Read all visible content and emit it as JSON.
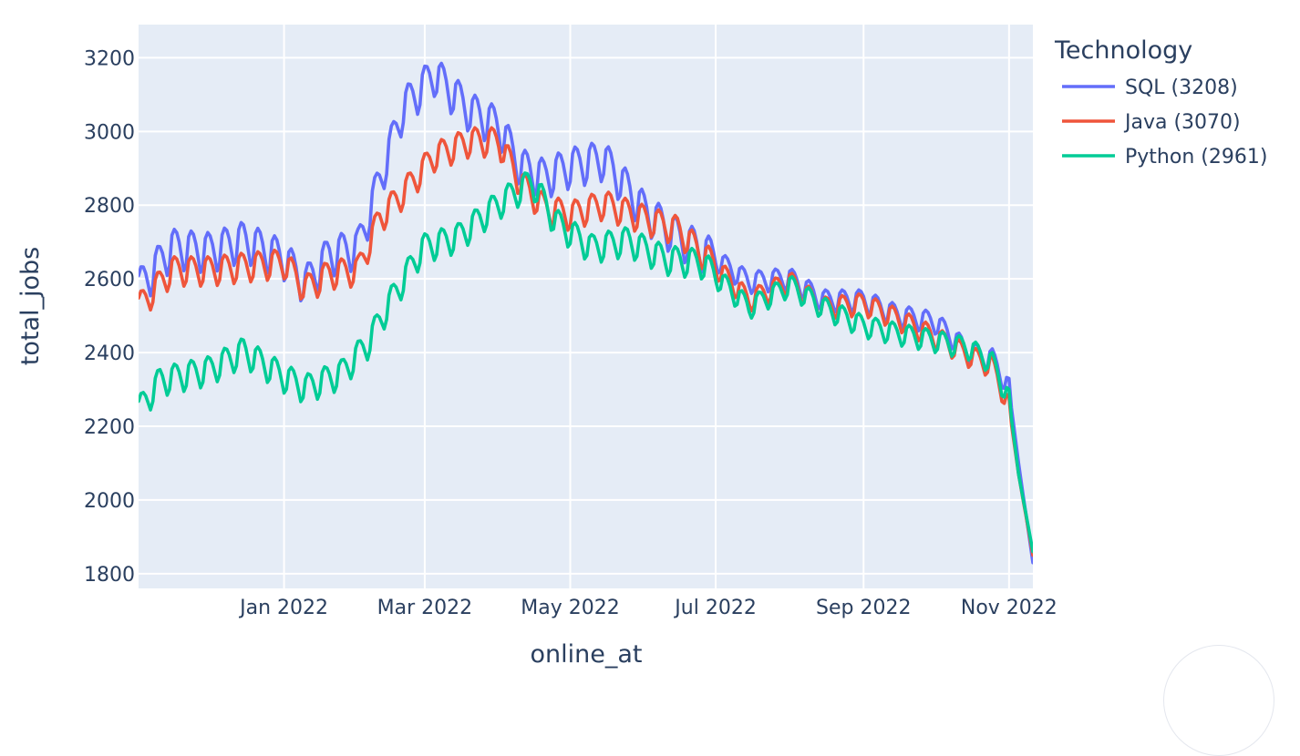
{
  "chart_data": {
    "type": "line",
    "xlabel": "online_at",
    "ylabel": "total_jobs",
    "x_range": [
      "2021-11-01",
      "2022-11-11"
    ],
    "ylim": [
      1760,
      3290
    ],
    "x_ticks": [
      {
        "date": "2022-01-01",
        "label": "Jan 2022"
      },
      {
        "date": "2022-03-01",
        "label": "Mar 2022"
      },
      {
        "date": "2022-05-01",
        "label": "May 2022"
      },
      {
        "date": "2022-07-01",
        "label": "Jul 2022"
      },
      {
        "date": "2022-09-01",
        "label": "Sep 2022"
      },
      {
        "date": "2022-11-01",
        "label": "Nov 2022"
      }
    ],
    "y_ticks": [
      1800,
      2000,
      2200,
      2400,
      2600,
      2800,
      3000,
      3200
    ],
    "grid": true,
    "legend_position": "top-right",
    "legend_title": "Technology",
    "background_color": "#e5ecf6",
    "series": [
      {
        "name": "SQL (3208)",
        "color": "#636efa",
        "anchors": [
          [
            "2021-11-01",
            2570
          ],
          [
            "2021-11-15",
            2680
          ],
          [
            "2021-12-01",
            2670
          ],
          [
            "2021-12-15",
            2700
          ],
          [
            "2022-01-01",
            2650
          ],
          [
            "2022-01-10",
            2580
          ],
          [
            "2022-01-20",
            2660
          ],
          [
            "2022-02-01",
            2680
          ],
          [
            "2022-02-10",
            2860
          ],
          [
            "2022-02-20",
            3060
          ],
          [
            "2022-03-05",
            3150
          ],
          [
            "2022-03-20",
            3050
          ],
          [
            "2022-04-01",
            3010
          ],
          [
            "2022-04-10",
            2900
          ],
          [
            "2022-04-20",
            2870
          ],
          [
            "2022-05-01",
            2900
          ],
          [
            "2022-05-15",
            2920
          ],
          [
            "2022-06-01",
            2780
          ],
          [
            "2022-06-15",
            2710
          ],
          [
            "2022-07-01",
            2650
          ],
          [
            "2022-07-15",
            2590
          ],
          [
            "2022-08-01",
            2600
          ],
          [
            "2022-08-15",
            2540
          ],
          [
            "2022-09-01",
            2540
          ],
          [
            "2022-09-15",
            2500
          ],
          [
            "2022-10-01",
            2480
          ],
          [
            "2022-10-15",
            2400
          ],
          [
            "2022-10-25",
            2380
          ],
          [
            "2022-11-01",
            2300
          ],
          [
            "2022-11-05",
            2100
          ],
          [
            "2022-11-11",
            1830
          ]
        ]
      },
      {
        "name": "Java (3070)",
        "color": "#ef553b",
        "anchors": [
          [
            "2021-11-01",
            2520
          ],
          [
            "2021-11-15",
            2620
          ],
          [
            "2021-12-01",
            2620
          ],
          [
            "2021-12-15",
            2630
          ],
          [
            "2022-01-01",
            2640
          ],
          [
            "2022-01-10",
            2570
          ],
          [
            "2022-01-20",
            2610
          ],
          [
            "2022-02-01",
            2620
          ],
          [
            "2022-02-10",
            2760
          ],
          [
            "2022-02-20",
            2830
          ],
          [
            "2022-03-05",
            2930
          ],
          [
            "2022-03-20",
            2970
          ],
          [
            "2022-04-01",
            2970
          ],
          [
            "2022-04-10",
            2860
          ],
          [
            "2022-04-20",
            2790
          ],
          [
            "2022-05-01",
            2770
          ],
          [
            "2022-05-15",
            2800
          ],
          [
            "2022-06-01",
            2760
          ],
          [
            "2022-06-15",
            2730
          ],
          [
            "2022-07-01",
            2630
          ],
          [
            "2022-07-15",
            2540
          ],
          [
            "2022-08-01",
            2590
          ],
          [
            "2022-08-15",
            2520
          ],
          [
            "2022-09-01",
            2530
          ],
          [
            "2022-09-15",
            2490
          ],
          [
            "2022-10-01",
            2440
          ],
          [
            "2022-10-15",
            2390
          ],
          [
            "2022-10-25",
            2360
          ],
          [
            "2022-11-01",
            2250
          ],
          [
            "2022-11-05",
            2070
          ],
          [
            "2022-11-11",
            1850
          ]
        ]
      },
      {
        "name": "Python (2961)",
        "color": "#00cc96",
        "anchors": [
          [
            "2021-11-01",
            2240
          ],
          [
            "2021-11-10",
            2320
          ],
          [
            "2021-12-01",
            2350
          ],
          [
            "2021-12-15",
            2400
          ],
          [
            "2022-01-01",
            2330
          ],
          [
            "2022-01-10",
            2300
          ],
          [
            "2022-01-25",
            2340
          ],
          [
            "2022-02-05",
            2420
          ],
          [
            "2022-02-15",
            2540
          ],
          [
            "2022-02-28",
            2680
          ],
          [
            "2022-03-15",
            2710
          ],
          [
            "2022-04-01",
            2800
          ],
          [
            "2022-04-15",
            2860
          ],
          [
            "2022-04-25",
            2750
          ],
          [
            "2022-05-10",
            2680
          ],
          [
            "2022-05-25",
            2700
          ],
          [
            "2022-06-10",
            2650
          ],
          [
            "2022-06-25",
            2640
          ],
          [
            "2022-07-05",
            2580
          ],
          [
            "2022-07-15",
            2520
          ],
          [
            "2022-08-01",
            2580
          ],
          [
            "2022-08-15",
            2520
          ],
          [
            "2022-09-01",
            2470
          ],
          [
            "2022-09-15",
            2450
          ],
          [
            "2022-10-01",
            2430
          ],
          [
            "2022-10-15",
            2410
          ],
          [
            "2022-10-25",
            2370
          ],
          [
            "2022-11-01",
            2270
          ],
          [
            "2022-11-05",
            2070
          ],
          [
            "2022-11-11",
            1860
          ]
        ]
      }
    ]
  }
}
